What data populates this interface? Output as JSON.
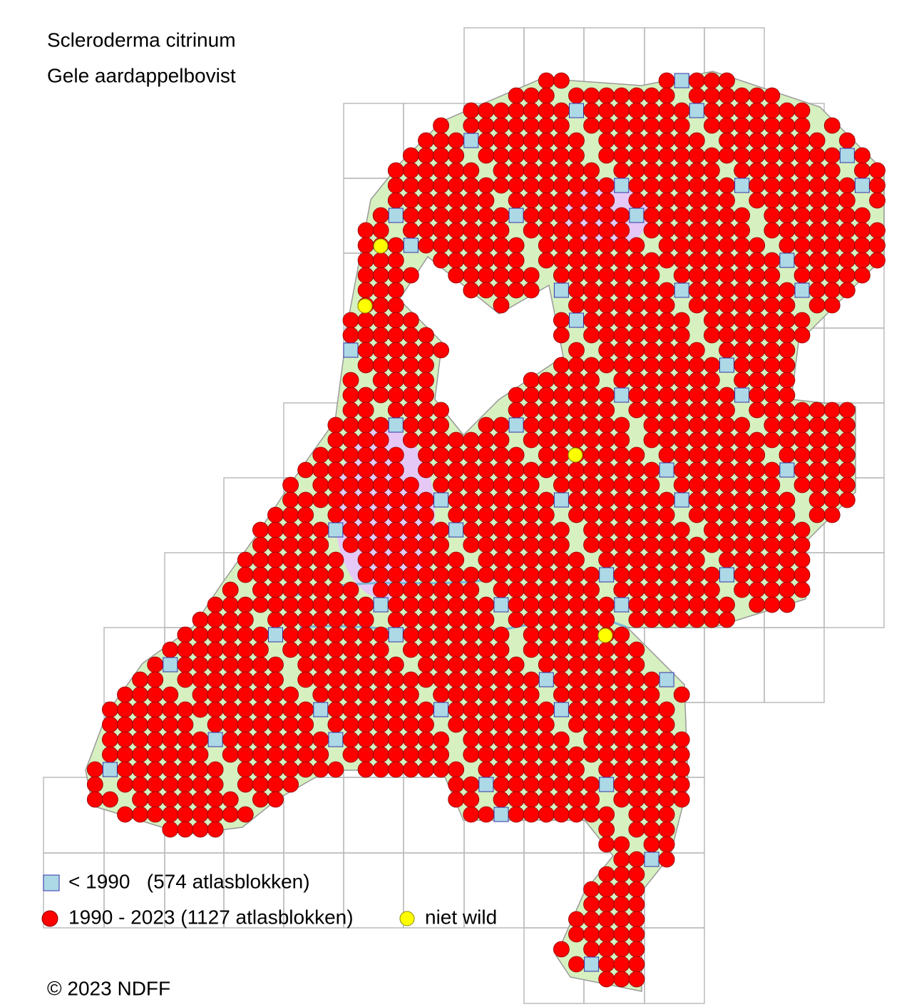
{
  "title": "Scleroderma citrinum",
  "subtitle": "Gele aardappelbovist",
  "legend": [
    {
      "label": "< 1990   (574 atlasblokken)"
    },
    {
      "label": "1990 - 2023 (1127 atlasblokken)"
    },
    {
      "label": "niet wild"
    }
  ],
  "copyright": "© 2023 NDFF"
}
